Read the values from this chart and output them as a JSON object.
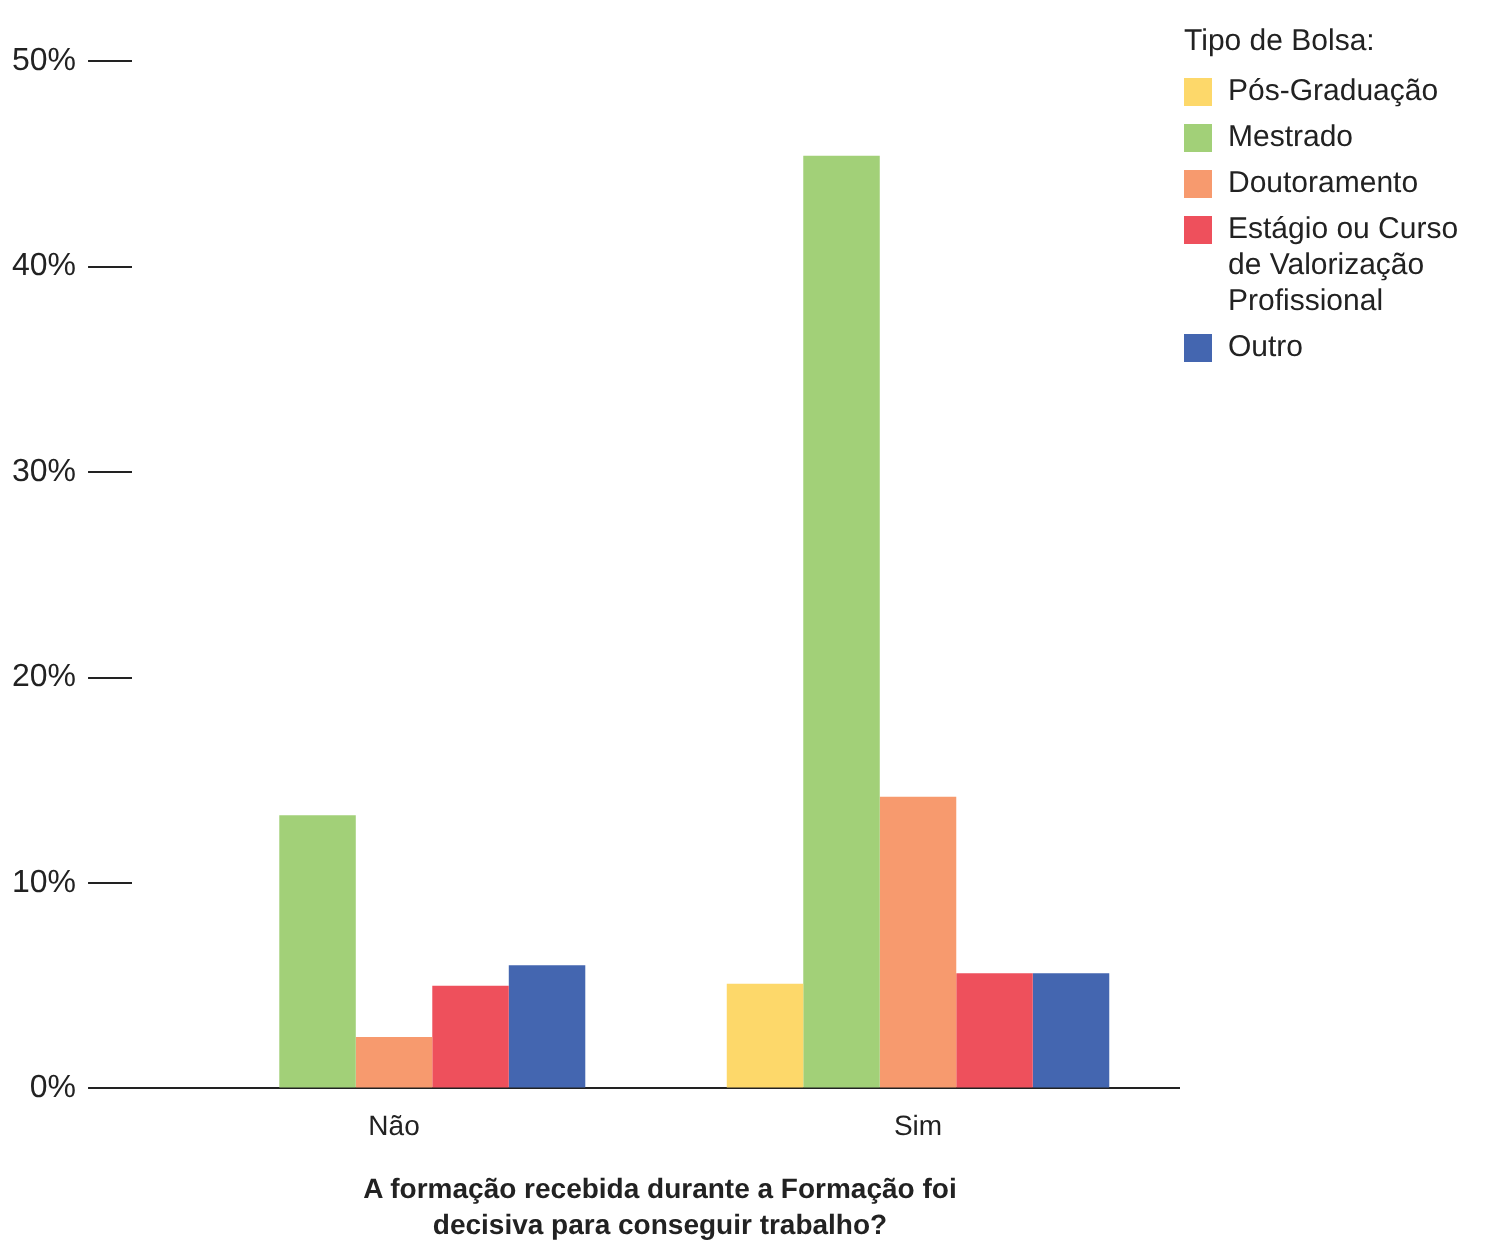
{
  "chart_data": {
    "type": "bar",
    "xlabel": "A formação recebida durante a Formação foi decisiva para conseguir trabalho?",
    "legend_title": "Tipo de Bolsa:",
    "legend": "top right",
    "grid": false,
    "categories": [
      "Não",
      "Sim"
    ],
    "series": [
      {
        "name": "Pós-Graduação",
        "color": "#fdd86a",
        "values": [
          0,
          5.1
        ]
      },
      {
        "name": "Mestrado",
        "color": "#a2d078",
        "values": [
          13.3,
          45.4
        ]
      },
      {
        "name": "Doutoramento",
        "color": "#f79a6e",
        "values": [
          2.5,
          14.2
        ]
      },
      {
        "name": "Estágio ou Curso de Valorização Profissional",
        "color": "#ee505c",
        "values": [
          5.0,
          5.6
        ]
      },
      {
        "name": "Outro",
        "color": "#4466b0",
        "values": [
          6.0,
          5.6
        ]
      }
    ],
    "ylim": [
      0,
      50
    ],
    "yticks": [
      {
        "value": 0,
        "label": "0%"
      },
      {
        "value": 10,
        "label": "10%"
      },
      {
        "value": 20,
        "label": "20%"
      },
      {
        "value": 30,
        "label": "30%"
      },
      {
        "value": 40,
        "label": "40%"
      },
      {
        "value": 50,
        "label": "50%"
      }
    ]
  }
}
